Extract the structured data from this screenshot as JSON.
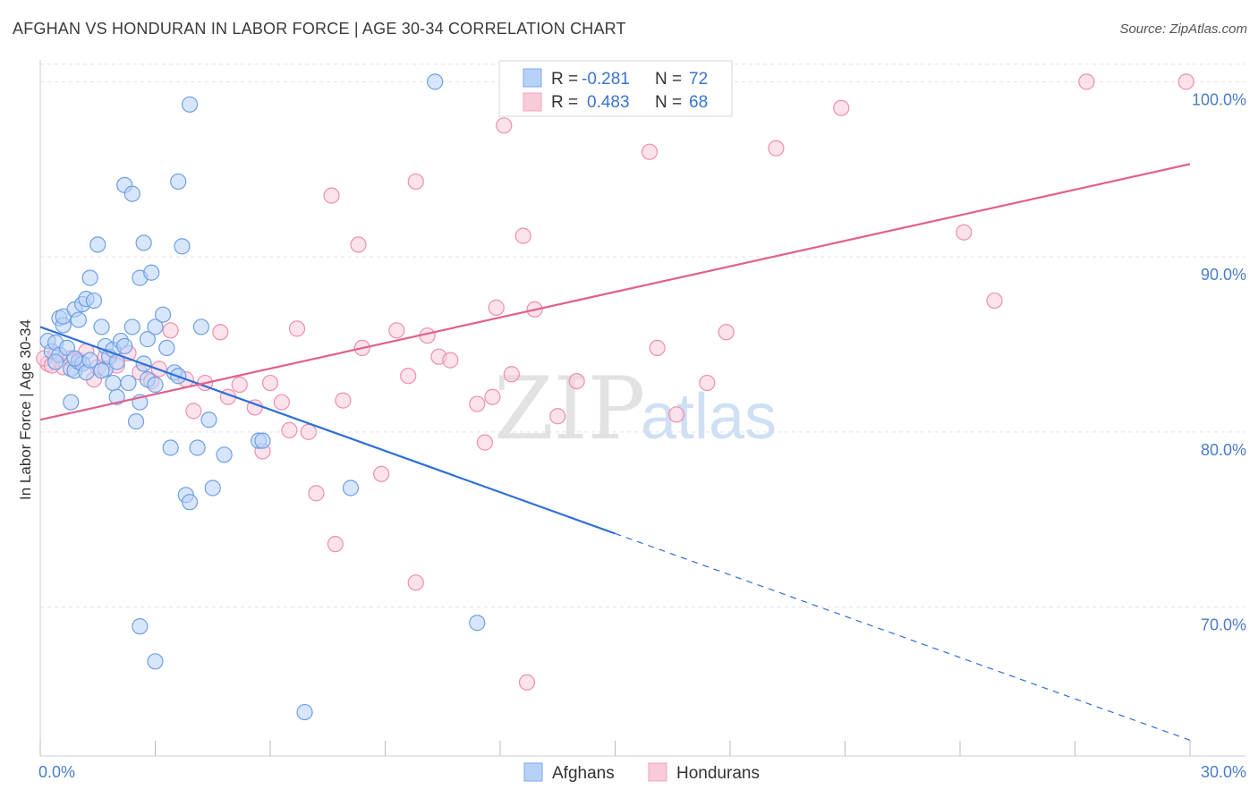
{
  "header": {
    "title": "AFGHAN VS HONDURAN IN LABOR FORCE | AGE 30-34 CORRELATION CHART",
    "source": "Source: ZipAtlas.com"
  },
  "watermark": {
    "zip": "ZIP",
    "atlas": "atlas"
  },
  "legend": {
    "rows": [
      {
        "r_label": "R =",
        "r_value": "-0.281",
        "n_label": "N =",
        "n_value": "72",
        "color": "#7aaaf0"
      },
      {
        "r_label": "R =",
        "r_value": "0.483",
        "n_label": "N =",
        "n_value": "68",
        "color": "#f3a6be"
      }
    ]
  },
  "bottom_legend": {
    "items": [
      "Afghans",
      "Hondurans"
    ]
  },
  "colors": {
    "afghan_fill": "#b8d2f7",
    "afghan_stroke": "#6f9fe3",
    "afghan_line": "#2d6fd6",
    "honduran_fill": "#f9cad8",
    "honduran_stroke": "#ee8fb0",
    "honduran_line": "#e0608e",
    "grid": "#e3e3e3",
    "tick_text": "#4a7cc9"
  },
  "chart_data": {
    "type": "scatter",
    "title": "AFGHAN VS HONDURAN IN LABOR FORCE | AGE 30-34 CORRELATION CHART",
    "xlabel": "",
    "ylabel": "In Labor Force | Age 30-34",
    "xlim": [
      0,
      30
    ],
    "ylim": [
      61.5,
      101.5
    ],
    "x_tick_labels": [
      "0.0%",
      "30.0%"
    ],
    "y_ticks": [
      70,
      80,
      90,
      100
    ],
    "y_tick_labels": [
      "70.0%",
      "80.0%",
      "90.0%",
      "100.0%"
    ],
    "grid": true,
    "legend_position": "top-center",
    "series": [
      {
        "name": "Afghans",
        "r": -0.281,
        "n": 72,
        "trend": {
          "x0": 0,
          "y0": 86.0,
          "x1": 15.0,
          "y1": 74.2,
          "dashed_to_x": 30,
          "dashed_to_y": 62.4
        },
        "points": [
          [
            0.2,
            85.2
          ],
          [
            0.3,
            84.6
          ],
          [
            0.4,
            85.1
          ],
          [
            0.5,
            86.5
          ],
          [
            0.5,
            84.4
          ],
          [
            0.6,
            86.1
          ],
          [
            0.6,
            86.6
          ],
          [
            0.7,
            84.8
          ],
          [
            0.8,
            83.6
          ],
          [
            0.8,
            81.7
          ],
          [
            0.9,
            83.5
          ],
          [
            0.9,
            87.0
          ],
          [
            1.0,
            84.0
          ],
          [
            1.0,
            86.4
          ],
          [
            1.1,
            83.9
          ],
          [
            1.1,
            87.3
          ],
          [
            1.2,
            87.6
          ],
          [
            1.2,
            83.4
          ],
          [
            1.3,
            88.8
          ],
          [
            1.4,
            87.5
          ],
          [
            1.5,
            90.7
          ],
          [
            1.6,
            86.0
          ],
          [
            1.7,
            84.9
          ],
          [
            1.7,
            83.6
          ],
          [
            1.8,
            84.3
          ],
          [
            1.9,
            84.7
          ],
          [
            1.9,
            82.8
          ],
          [
            2.0,
            82.0
          ],
          [
            2.1,
            85.2
          ],
          [
            2.2,
            84.9
          ],
          [
            2.2,
            94.1
          ],
          [
            2.3,
            82.8
          ],
          [
            2.4,
            86.0
          ],
          [
            2.4,
            93.6
          ],
          [
            2.5,
            80.6
          ],
          [
            2.6,
            81.7
          ],
          [
            2.6,
            88.8
          ],
          [
            2.7,
            90.8
          ],
          [
            2.8,
            83.0
          ],
          [
            2.8,
            85.3
          ],
          [
            2.9,
            89.1
          ],
          [
            3.0,
            86.0
          ],
          [
            3.0,
            82.7
          ],
          [
            3.2,
            86.7
          ],
          [
            3.3,
            84.8
          ],
          [
            3.4,
            79.1
          ],
          [
            3.5,
            83.4
          ],
          [
            3.6,
            83.2
          ],
          [
            3.6,
            94.3
          ],
          [
            3.7,
            90.6
          ],
          [
            3.8,
            76.4
          ],
          [
            3.9,
            76.0
          ],
          [
            3.9,
            98.7
          ],
          [
            4.1,
            79.1
          ],
          [
            4.2,
            86.0
          ],
          [
            4.4,
            80.7
          ],
          [
            4.5,
            76.8
          ],
          [
            4.8,
            78.7
          ],
          [
            5.7,
            79.5
          ],
          [
            5.8,
            79.5
          ],
          [
            8.1,
            76.8
          ],
          [
            10.3,
            100.0
          ],
          [
            11.4,
            69.1
          ],
          [
            2.6,
            68.9
          ],
          [
            3.0,
            66.9
          ],
          [
            6.9,
            64.0
          ],
          [
            2.0,
            84.0
          ],
          [
            1.6,
            83.5
          ],
          [
            0.9,
            84.2
          ],
          [
            0.4,
            84.0
          ],
          [
            1.3,
            84.1
          ],
          [
            2.7,
            83.9
          ]
        ]
      },
      {
        "name": "Hondurans",
        "r": 0.483,
        "n": 68,
        "trend": {
          "x0": 0,
          "y0": 80.7,
          "x1": 30,
          "y1": 95.3
        },
        "points": [
          [
            0.2,
            83.9
          ],
          [
            0.4,
            84.4
          ],
          [
            0.6,
            83.7
          ],
          [
            0.8,
            84.2
          ],
          [
            1.0,
            84.1
          ],
          [
            1.2,
            84.6
          ],
          [
            1.4,
            83.0
          ],
          [
            1.5,
            83.7
          ],
          [
            1.7,
            84.3
          ],
          [
            2.0,
            83.8
          ],
          [
            2.3,
            84.5
          ],
          [
            2.6,
            83.4
          ],
          [
            2.9,
            82.9
          ],
          [
            3.1,
            83.6
          ],
          [
            3.4,
            85.8
          ],
          [
            3.8,
            83.0
          ],
          [
            4.0,
            81.2
          ],
          [
            4.3,
            82.8
          ],
          [
            4.7,
            85.7
          ],
          [
            4.9,
            82.0
          ],
          [
            5.2,
            82.7
          ],
          [
            5.6,
            81.4
          ],
          [
            5.8,
            78.9
          ],
          [
            6.0,
            82.8
          ],
          [
            6.3,
            81.7
          ],
          [
            6.5,
            80.1
          ],
          [
            6.7,
            85.9
          ],
          [
            7.0,
            80.0
          ],
          [
            7.2,
            76.5
          ],
          [
            7.6,
            93.5
          ],
          [
            7.7,
            73.6
          ],
          [
            7.9,
            81.8
          ],
          [
            8.3,
            90.7
          ],
          [
            8.4,
            84.8
          ],
          [
            8.9,
            77.6
          ],
          [
            9.3,
            85.8
          ],
          [
            9.6,
            83.2
          ],
          [
            9.8,
            71.4
          ],
          [
            9.8,
            94.3
          ],
          [
            10.1,
            85.5
          ],
          [
            10.4,
            84.3
          ],
          [
            10.7,
            84.1
          ],
          [
            11.4,
            81.6
          ],
          [
            11.6,
            79.4
          ],
          [
            11.8,
            82.0
          ],
          [
            11.9,
            87.1
          ],
          [
            12.1,
            97.5
          ],
          [
            12.3,
            83.3
          ],
          [
            12.6,
            91.2
          ],
          [
            12.7,
            65.7
          ],
          [
            12.9,
            87.0
          ],
          [
            13.5,
            80.9
          ],
          [
            14.0,
            82.9
          ],
          [
            15.8,
            99.9
          ],
          [
            15.9,
            96.0
          ],
          [
            16.1,
            84.8
          ],
          [
            16.3,
            99.1
          ],
          [
            16.6,
            81.0
          ],
          [
            17.4,
            82.8
          ],
          [
            17.9,
            85.7
          ],
          [
            19.2,
            96.2
          ],
          [
            20.9,
            98.5
          ],
          [
            24.1,
            91.4
          ],
          [
            24.9,
            87.5
          ],
          [
            27.3,
            100.0
          ],
          [
            29.9,
            100.0
          ],
          [
            0.1,
            84.2
          ],
          [
            0.3,
            83.8
          ]
        ]
      }
    ]
  }
}
